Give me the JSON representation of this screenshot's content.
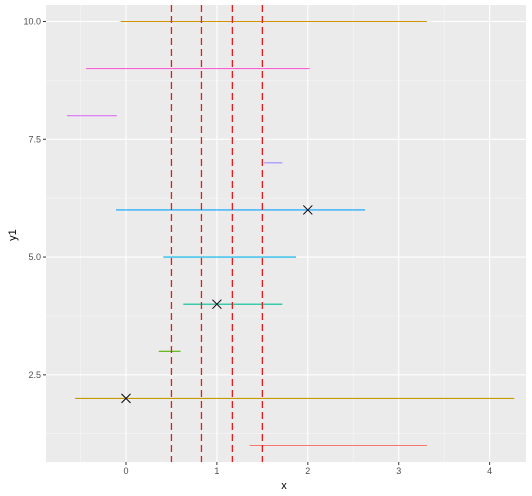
{
  "chart_data": {
    "type": "segment",
    "xlabel": "x",
    "ylabel": "y1",
    "xlim": [
      -0.88,
      4.4
    ],
    "ylim": [
      0.65,
      10.35
    ],
    "x_ticks": [
      0,
      1,
      2,
      3,
      4
    ],
    "x_tick_labels": [
      "0",
      "1",
      "2",
      "3",
      "4"
    ],
    "y_ticks": [
      2.5,
      5.0,
      7.5,
      10.0
    ],
    "y_tick_labels": [
      "2.5",
      "5.0",
      "7.5",
      "10.0"
    ],
    "grid": true,
    "panel_background": "#ebebeb",
    "segments": [
      {
        "y": 1,
        "x_start": 1.36,
        "x_end": 3.31,
        "color": "#f8766d"
      },
      {
        "y": 2,
        "x_start": -0.56,
        "x_end": 4.27,
        "color": "#c49a00"
      },
      {
        "y": 3,
        "x_start": 0.36,
        "x_end": 0.6,
        "color": "#53b400"
      },
      {
        "y": 4,
        "x_start": 0.63,
        "x_end": 1.72,
        "color": "#00c094"
      },
      {
        "y": 5,
        "x_start": 0.41,
        "x_end": 1.87,
        "color": "#00b6eb"
      },
      {
        "y": 6,
        "x_start": -0.11,
        "x_end": 2.63,
        "color": "#06a4ff"
      },
      {
        "y": 7,
        "x_start": 1.52,
        "x_end": 1.72,
        "color": "#a58aff"
      },
      {
        "y": 8,
        "x_start": -0.65,
        "x_end": -0.1,
        "color": "#df70f8"
      },
      {
        "y": 9,
        "x_start": -0.44,
        "x_end": 2.02,
        "color": "#fb61d7"
      },
      {
        "y": 10,
        "x_start": -0.06,
        "x_end": 3.31,
        "color": "#d39200"
      }
    ],
    "points": [
      {
        "x": 0,
        "y": 2,
        "shape": "cross"
      },
      {
        "x": 1,
        "y": 4,
        "shape": "cross"
      },
      {
        "x": 2,
        "y": 6,
        "shape": "cross"
      }
    ],
    "vlines": [
      {
        "x": 0.5,
        "color": "#e41a1c",
        "linetype": "dashed"
      },
      {
        "x": 0.83,
        "color": "#e41a1c",
        "linetype": "dashed"
      },
      {
        "x": 1.17,
        "color": "#e41a1c",
        "linetype": "dashed"
      },
      {
        "x": 1.5,
        "color": "#e41a1c",
        "linetype": "dashed"
      }
    ]
  }
}
